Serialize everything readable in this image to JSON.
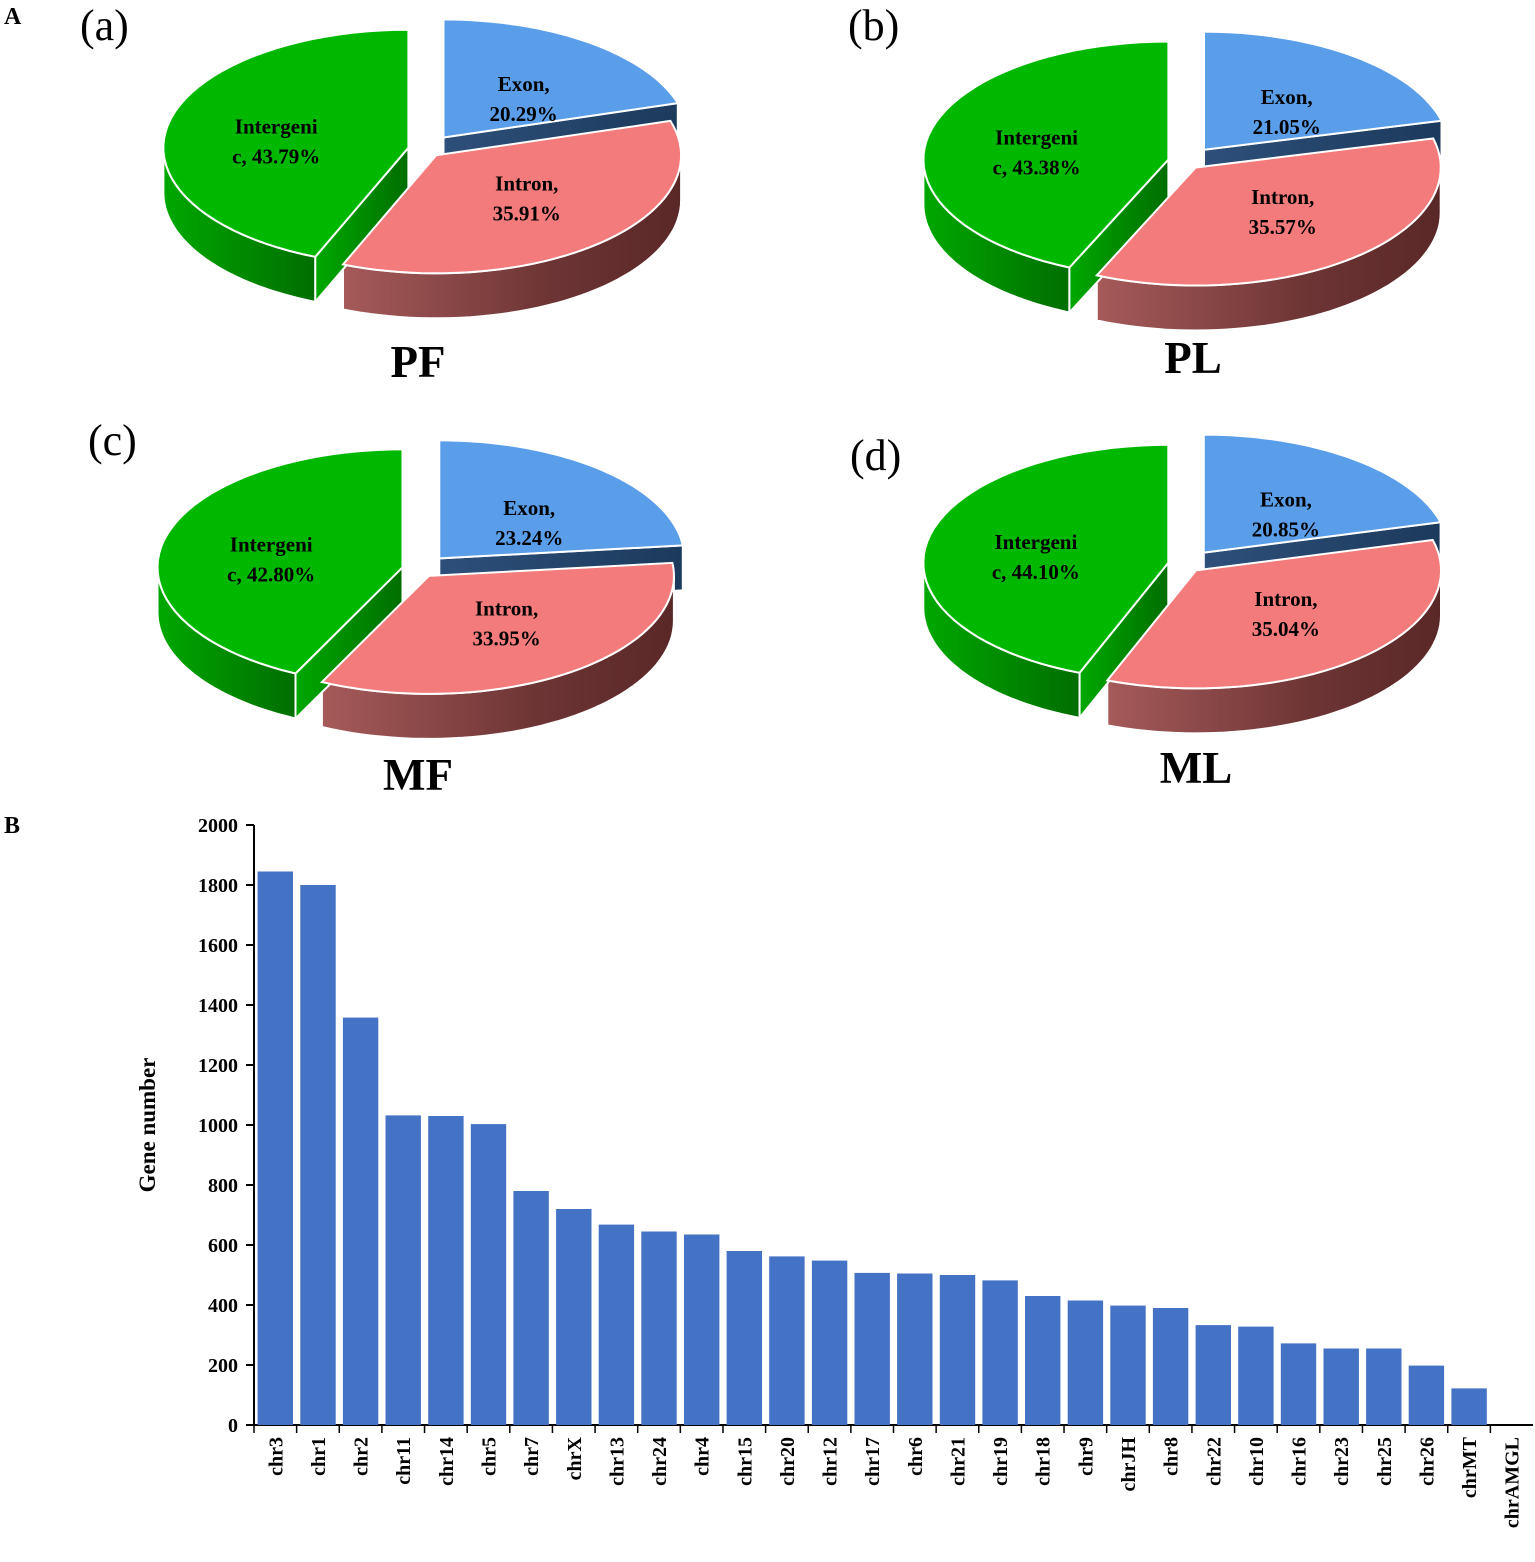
{
  "chart_data": [
    {
      "type": "pie",
      "panel_tag": "(a)",
      "title": "PF",
      "slices": [
        {
          "name": "Exon",
          "label_line1": "Exon,",
          "label_line2": "20.29%",
          "value": 20.29,
          "color": "#5a9de8"
        },
        {
          "name": "Intron",
          "label_line1": "Intron,",
          "label_line2": "35.91%",
          "value": 35.91,
          "color": "#f37b7b"
        },
        {
          "name": "Intergenic",
          "label_line1": "Intergeni",
          "label_line2": "c, 43.79%",
          "value": 43.79,
          "color": "#00b800"
        }
      ]
    },
    {
      "type": "pie",
      "panel_tag": "(b)",
      "title": "PL",
      "slices": [
        {
          "name": "Exon",
          "label_line1": "Exon,",
          "label_line2": "21.05%",
          "value": 21.05,
          "color": "#5a9de8"
        },
        {
          "name": "Intron",
          "label_line1": "Intron,",
          "label_line2": "35.57%",
          "value": 35.57,
          "color": "#f37b7b"
        },
        {
          "name": "Intergenic",
          "label_line1": "Intergeni",
          "label_line2": "c, 43.38%",
          "value": 43.38,
          "color": "#00b800"
        }
      ]
    },
    {
      "type": "pie",
      "panel_tag": "(c)",
      "title": "MF",
      "slices": [
        {
          "name": "Exon",
          "label_line1": "Exon,",
          "label_line2": "23.24%",
          "value": 23.24,
          "color": "#5a9de8"
        },
        {
          "name": "Intron",
          "label_line1": "Intron,",
          "label_line2": "33.95%",
          "value": 33.95,
          "color": "#f37b7b"
        },
        {
          "name": "Intergenic",
          "label_line1": "Intergeni",
          "label_line2": "c, 42.80%",
          "value": 42.8,
          "color": "#00b800"
        }
      ]
    },
    {
      "type": "pie",
      "panel_tag": "(d)",
      "title": "ML",
      "slices": [
        {
          "name": "Exon",
          "label_line1": "Exon,",
          "label_line2": "20.85%",
          "value": 20.85,
          "color": "#5a9de8"
        },
        {
          "name": "Intron",
          "label_line1": "Intron,",
          "label_line2": "35.04%",
          "value": 35.04,
          "color": "#f37b7b"
        },
        {
          "name": "Intergenic",
          "label_line1": "Intergeni",
          "label_line2": "c, 44.10%",
          "value": 44.1,
          "color": "#00b800"
        }
      ]
    },
    {
      "type": "bar",
      "title": "",
      "xlabel": "",
      "ylabel": "Gene number",
      "ylim": [
        0,
        2000
      ],
      "yticks": [
        0,
        200,
        400,
        600,
        800,
        1000,
        1200,
        1400,
        1600,
        1800,
        2000
      ],
      "bar_color": "#4472c4",
      "categories": [
        "chr3",
        "chr1",
        "chr2",
        "chr11",
        "chr14",
        "chr5",
        "chr7",
        "chrX",
        "chr13",
        "chr24",
        "chr4",
        "chr15",
        "chr20",
        "chr12",
        "chr17",
        "chr6",
        "chr21",
        "chr19",
        "chr18",
        "chr9",
        "chrJH",
        "chr8",
        "chr22",
        "chr10",
        "chr16",
        "chr23",
        "chr25",
        "chr26",
        "chrMT",
        "chrAMGL"
      ],
      "values": [
        1845,
        1800,
        1358,
        1032,
        1030,
        1003,
        780,
        720,
        668,
        645,
        635,
        580,
        562,
        548,
        507,
        505,
        500,
        482,
        430,
        415,
        398,
        390,
        333,
        328,
        272,
        255,
        255,
        198,
        122,
        0
      ]
    }
  ],
  "section_labels": {
    "pies": "A",
    "bars": "B"
  }
}
